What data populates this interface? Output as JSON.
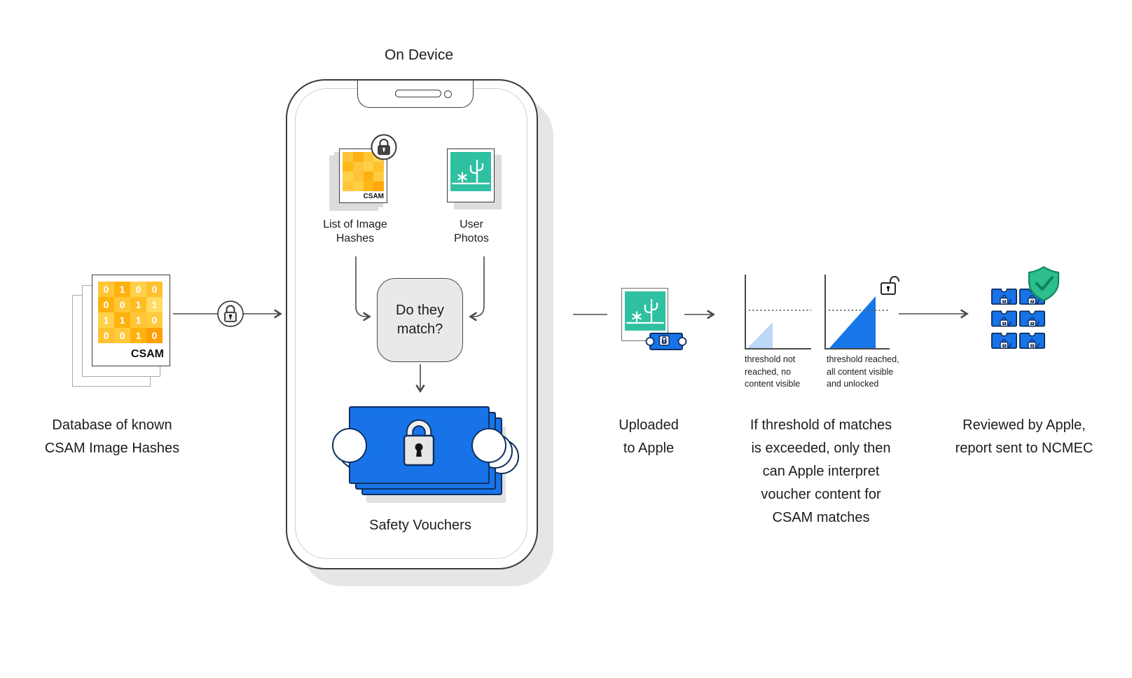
{
  "colors": {
    "accent_blue": "#1873E8",
    "navy_outline": "#0F2F5F",
    "teal": "#2FC0A2",
    "shield_green": "#2CBE8C",
    "shield_check_green": "#0B8457",
    "light_blue": "#BCD8F6",
    "hash_orange": "#FFB612",
    "gray_box": "#E9E9E9"
  },
  "database": {
    "caption_lines": [
      "Database of known",
      "CSAM Image Hashes"
    ],
    "card_label": "CSAM",
    "matrix": {
      "digits": [
        [
          "0",
          "1",
          "0",
          "0"
        ],
        [
          "0",
          "0",
          "1",
          "1"
        ],
        [
          "1",
          "1",
          "1",
          "0"
        ],
        [
          "0",
          "0",
          "1",
          "0"
        ]
      ],
      "colors": [
        [
          "#FFC637",
          "#FFB20E",
          "#FFD04A",
          "#FFC12F"
        ],
        [
          "#FFB20E",
          "#FFC637",
          "#FFBD24",
          "#FFDC5E"
        ],
        [
          "#FFD04A",
          "#FFB20E",
          "#FFC637",
          "#FFCB3E"
        ],
        [
          "#FFC12F",
          "#FFC93B",
          "#FFB20E",
          "#FF9F06"
        ]
      ]
    }
  },
  "link": {
    "icon": "lock-icon"
  },
  "device": {
    "title": "On Device",
    "hash_icon": {
      "label_lines": [
        "List of Image",
        "Hashes"
      ],
      "card_label": "CSAM",
      "badge": "lock-icon",
      "matrix_colors": [
        [
          "#FFC53A",
          "#FFB012",
          "#FFC53A",
          "#FFD24D"
        ],
        [
          "#FFB815",
          "#FFC53A",
          "#FFCF45",
          "#FFC02E"
        ],
        [
          "#FFD04A",
          "#FFC33A",
          "#FFB012",
          "#FFCB3E"
        ],
        [
          "#FFC63C",
          "#FFCE45",
          "#FFB815",
          "#FFA80A"
        ]
      ]
    },
    "photos_icon": {
      "label_lines": [
        "User",
        "Photos"
      ]
    },
    "match_box": {
      "lines": [
        "Do they",
        "match?"
      ]
    },
    "vouchers_label": "Safety Vouchers"
  },
  "upload": {
    "caption_lines": [
      "Uploaded",
      "to Apple"
    ]
  },
  "threshold": {
    "chart_not_reached": {
      "caption_lines": [
        "threshold not",
        "reached, no",
        "content visible"
      ]
    },
    "chart_reached": {
      "caption_lines": [
        "threshold reached,",
        "all content visible",
        "and unlocked"
      ]
    },
    "caption_lines": [
      "If threshold of matches",
      "is exceeded, only then",
      "can Apple interpret",
      "voucher content for",
      "CSAM matches"
    ]
  },
  "review": {
    "caption_lines": [
      "Reviewed by Apple,",
      "report sent to NCMEC"
    ],
    "voucher_count": 6
  }
}
